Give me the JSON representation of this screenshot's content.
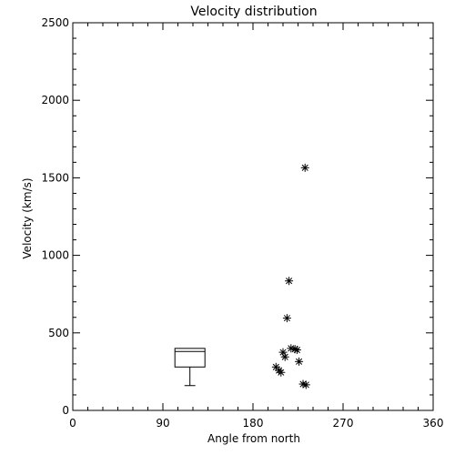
{
  "chart_data": {
    "type": "scatter",
    "title": "Velocity distribution",
    "xlabel": "Angle from north",
    "ylabel": "Velocity (km/s)",
    "xlim": [
      0,
      360
    ],
    "ylim": [
      0,
      2500
    ],
    "xticks": [
      0,
      90,
      180,
      270,
      360
    ],
    "yticks": [
      0,
      500,
      1000,
      1500,
      2000,
      2500
    ],
    "grid": false,
    "marker": "asterisk",
    "points": [
      {
        "x": 232,
        "y": 1565
      },
      {
        "x": 216,
        "y": 835
      },
      {
        "x": 214,
        "y": 595
      },
      {
        "x": 218,
        "y": 400
      },
      {
        "x": 222,
        "y": 395
      },
      {
        "x": 224,
        "y": 390
      },
      {
        "x": 210,
        "y": 375
      },
      {
        "x": 212,
        "y": 345
      },
      {
        "x": 226,
        "y": 315
      },
      {
        "x": 203,
        "y": 280
      },
      {
        "x": 206,
        "y": 258
      },
      {
        "x": 208,
        "y": 245
      },
      {
        "x": 230,
        "y": 170
      },
      {
        "x": 233,
        "y": 165
      }
    ],
    "boxplot": {
      "x_range": [
        102,
        132
      ],
      "q1": 280,
      "median": 380,
      "q3": 400,
      "whisker_low": 160,
      "whisker_high": 400
    }
  }
}
